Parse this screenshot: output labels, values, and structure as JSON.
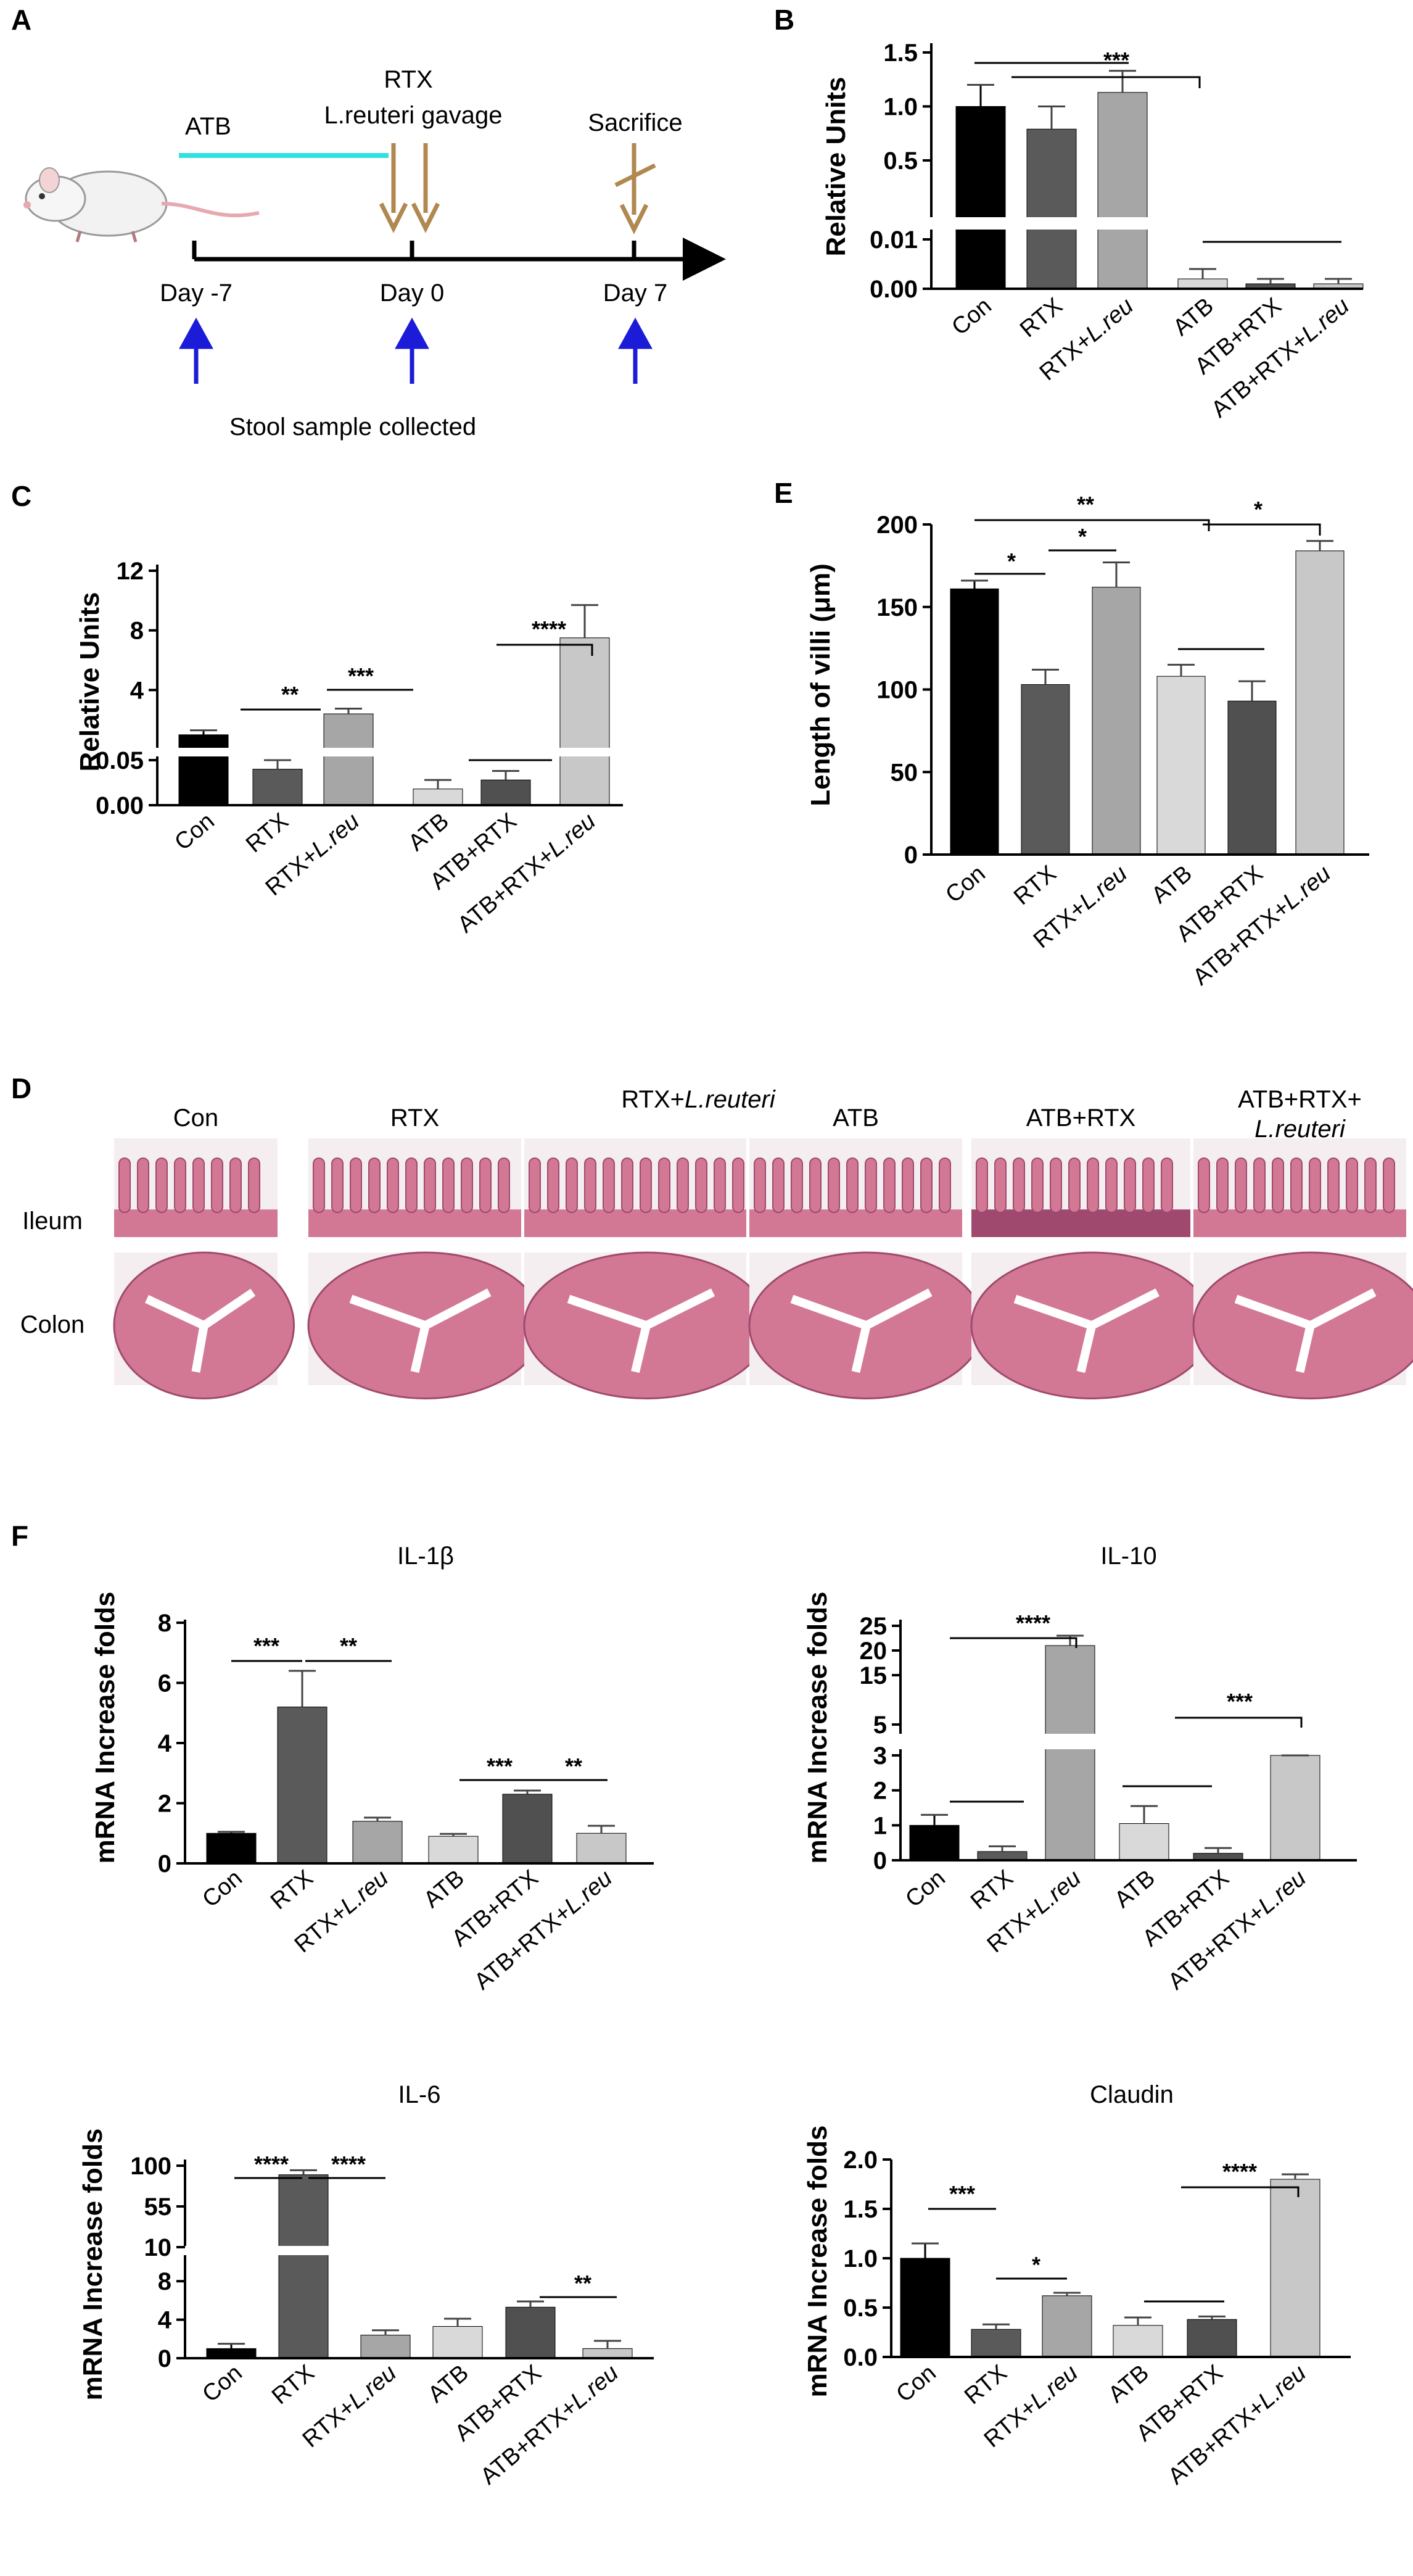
{
  "panels": {
    "A": {
      "letter": "A"
    },
    "B": {
      "letter": "B"
    },
    "C": {
      "letter": "C"
    },
    "D": {
      "letter": "D"
    },
    "E": {
      "letter": "E"
    },
    "F": {
      "letter": "F"
    }
  },
  "timeline": {
    "atb_label": "ATB",
    "rtx_label": "RTX",
    "gavage_label": "L.reuteri gavage",
    "sacrifice_label": "Sacrifice",
    "days": [
      "Day -7",
      "Day 0",
      "Day 7"
    ],
    "stool_label": "Stool sample collected",
    "colors": {
      "atb_line": "#33e0e0",
      "gavage_arrow": "#b08850",
      "stool_arrow": "#1c1cd8"
    }
  },
  "histology": {
    "columns": [
      "Con",
      "RTX",
      "RTX+",
      "ATB",
      "ATB+RTX",
      "ATB+RTX+"
    ],
    "column_italic": [
      "",
      "",
      "L.reuteri",
      "",
      "",
      "L.reuteri"
    ],
    "rows": [
      "Ileum",
      "Colon"
    ],
    "colors": {
      "tissue": "#d27895",
      "tissue_dark": "#a0496e",
      "background": "#f4eef0"
    }
  },
  "group_labels": {
    "short": [
      "Con",
      "RTX",
      "RTX+",
      "ATB",
      "ATB+RTX",
      "ATB+RTX+"
    ],
    "italic": [
      "",
      "",
      "L.reu",
      "",
      "",
      "L.reu"
    ]
  },
  "colors": {
    "con": "#000000",
    "rtx": "#5a5a5a",
    "rtx_lreu": "#a6a6a6",
    "atb": "#d9d9d9",
    "atb_rtx": "#505050",
    "atb_rtx_lreu": "#c8c8c8"
  },
  "chart_data": [
    {
      "id": "B",
      "type": "bar",
      "ylabel": "Relative Units",
      "title": "",
      "categories": [
        "Con",
        "RTX",
        "RTX+L.reu",
        "ATB",
        "ATB+RTX",
        "ATB+RTX+L.reu"
      ],
      "values": [
        1.0,
        0.79,
        1.13,
        0.002,
        0.001,
        0.001
      ],
      "errors": [
        0.2,
        0.21,
        0.2,
        0.002,
        0.001,
        0.001
      ],
      "broken_axis": {
        "lower": [
          0,
          0.01
        ],
        "upper": [
          0.5,
          1.5
        ]
      },
      "ticks": [
        "0.00",
        "0.01",
        "0.5",
        "1.0",
        "1.5"
      ],
      "annotations": [
        "***"
      ]
    },
    {
      "id": "C",
      "type": "bar",
      "ylabel": "Relative Units",
      "title": "",
      "categories": [
        "Con",
        "RTX",
        "RTX+L.reu",
        "ATB",
        "ATB+RTX",
        "ATB+RTX+L.reu"
      ],
      "values": [
        1.0,
        0.04,
        2.4,
        0.018,
        0.028,
        7.5
      ],
      "errors": [
        0.3,
        0.01,
        0.35,
        0.01,
        0.01,
        2.2
      ],
      "broken_axis": {
        "lower": [
          0,
          0.05
        ],
        "upper": [
          0,
          12
        ]
      },
      "ticks": [
        "0.00",
        "0.05",
        "4",
        "8",
        "12"
      ],
      "annotations": [
        "**",
        "***",
        "****"
      ]
    },
    {
      "id": "E",
      "type": "bar",
      "ylabel": "Length of villi  (μm)",
      "title": "",
      "categories": [
        "Con",
        "RTX",
        "RTX+L.reu",
        "ATB",
        "ATB+RTX",
        "ATB+RTX+L.reu"
      ],
      "values": [
        161,
        103,
        162,
        108,
        93,
        184
      ],
      "errors": [
        5,
        9,
        15,
        7,
        12,
        6
      ],
      "ylim": [
        0,
        200
      ],
      "ticks": [
        "0",
        "50",
        "100",
        "150",
        "200"
      ],
      "annotations": [
        "*",
        "*",
        "**",
        "*"
      ]
    },
    {
      "id": "IL1b",
      "type": "bar",
      "title": "IL-1β",
      "ylabel": "mRNA Increase folds",
      "categories": [
        "Con",
        "RTX",
        "RTX+L.reu",
        "ATB",
        "ATB+RTX",
        "ATB+RTX+L.reu"
      ],
      "values": [
        1.0,
        5.2,
        1.4,
        0.9,
        2.3,
        1.0
      ],
      "errors": [
        0.05,
        1.2,
        0.12,
        0.08,
        0.12,
        0.25
      ],
      "ylim": [
        0,
        8
      ],
      "ticks": [
        "0",
        "2",
        "4",
        "6",
        "8"
      ],
      "annotations": [
        "***",
        "**",
        "***",
        "**"
      ]
    },
    {
      "id": "IL10",
      "type": "bar",
      "title": "IL-10",
      "ylabel": "mRNA Increase folds",
      "categories": [
        "Con",
        "RTX",
        "RTX+L.reu",
        "ATB",
        "ATB+RTX",
        "ATB+RTX+L.reu"
      ],
      "values": [
        1.0,
        0.25,
        21.0,
        1.05,
        0.2,
        3.0
      ],
      "errors": [
        0.3,
        0.15,
        2.0,
        0.5,
        0.15,
        0.7
      ],
      "broken_axis": {
        "lower": [
          0,
          3
        ],
        "upper": [
          5,
          25
        ]
      },
      "ticks": [
        "0",
        "1",
        "2",
        "3",
        "5",
        "15",
        "20",
        "25"
      ],
      "annotations": [
        "****",
        "***"
      ]
    },
    {
      "id": "IL6",
      "type": "bar",
      "title": "IL-6",
      "ylabel": "mRNA Increase folds",
      "categories": [
        "Con",
        "RTX",
        "RTX+L.reu",
        "ATB",
        "ATB+RTX",
        "ATB+RTX+L.reu"
      ],
      "values": [
        1.0,
        90,
        2.4,
        3.3,
        5.3,
        1.0
      ],
      "errors": [
        0.5,
        5,
        0.5,
        0.8,
        0.6,
        0.8
      ],
      "broken_axis": {
        "lower": [
          0,
          10
        ],
        "upper": [
          10,
          100
        ]
      },
      "ticks": [
        "0",
        "4",
        "8",
        "10",
        "55",
        "100"
      ],
      "annotations": [
        "****",
        "****",
        "**"
      ]
    },
    {
      "id": "Claudin",
      "type": "bar",
      "title": "Claudin",
      "ylabel": "mRNA Increase folds",
      "categories": [
        "Con",
        "RTX",
        "RTX+L.reu",
        "ATB",
        "ATB+RTX",
        "ATB+RTX+L.reu"
      ],
      "values": [
        1.0,
        0.28,
        0.62,
        0.32,
        0.38,
        1.8
      ],
      "errors": [
        0.15,
        0.05,
        0.03,
        0.08,
        0.03,
        0.05
      ],
      "ylim": [
        0,
        2.0
      ],
      "ticks": [
        "0.0",
        "0.5",
        "1.0",
        "1.5",
        "2.0"
      ],
      "annotations": [
        "***",
        "*",
        "****"
      ]
    }
  ]
}
